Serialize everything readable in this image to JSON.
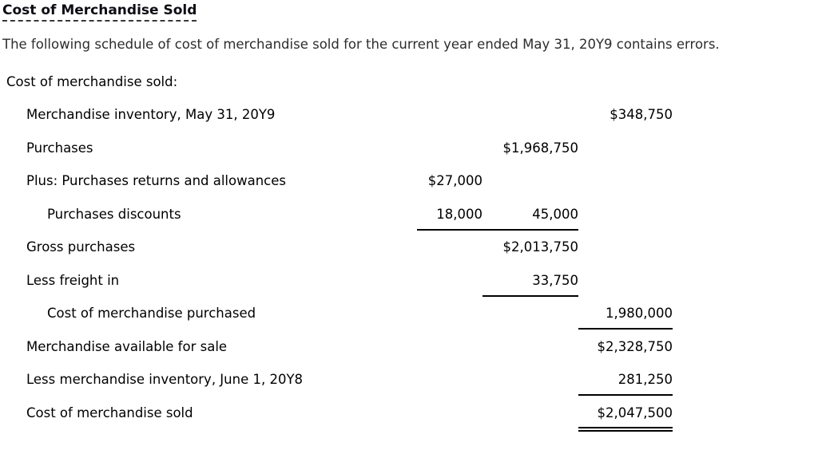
{
  "page": {
    "title": "Cost of Merchandise Sold",
    "intro": "The following schedule of cost of merchandise sold for the current year ended May 31, 20Y9 contains errors."
  },
  "schedule": {
    "header": "Cost of merchandise sold:",
    "rows": [
      {
        "label": "Merchandise inventory, May 31, 20Y9",
        "indent": 1,
        "c1": "",
        "c2": "",
        "c3": "$348,750",
        "r1": "none",
        "r2": "none",
        "r3": "none"
      },
      {
        "label": "Purchases",
        "indent": 1,
        "c1": "",
        "c2": "$1,968,750",
        "c3": "",
        "r1": "none",
        "r2": "none",
        "r3": "none"
      },
      {
        "label": "Plus: Purchases returns and allowances",
        "indent": 1,
        "c1": "$27,000",
        "c2": "",
        "c3": "",
        "r1": "none",
        "r2": "none",
        "r3": "none"
      },
      {
        "label": "Purchases discounts",
        "indent": 2,
        "c1": "18,000",
        "c2": "45,000",
        "c3": "",
        "r1": "single",
        "r2": "single",
        "r3": "none"
      },
      {
        "label": "Gross purchases",
        "indent": 1,
        "c1": "",
        "c2": "$2,013,750",
        "c3": "",
        "r1": "none",
        "r2": "none",
        "r3": "none"
      },
      {
        "label": "Less freight in",
        "indent": 1,
        "c1": "",
        "c2": "33,750",
        "c3": "",
        "r1": "none",
        "r2": "single",
        "r3": "none"
      },
      {
        "label": "Cost of merchandise purchased",
        "indent": 2,
        "c1": "",
        "c2": "",
        "c3": "1,980,000",
        "r1": "none",
        "r2": "none",
        "r3": "single"
      },
      {
        "label": "Merchandise available for sale",
        "indent": 1,
        "c1": "",
        "c2": "",
        "c3": "$2,328,750",
        "r1": "none",
        "r2": "none",
        "r3": "none"
      },
      {
        "label": "Less merchandise inventory, June 1, 20Y8",
        "indent": 1,
        "c1": "",
        "c2": "",
        "c3": "281,250",
        "r1": "none",
        "r2": "none",
        "r3": "single"
      },
      {
        "label": "Cost of merchandise sold",
        "indent": 1,
        "c1": "",
        "c2": "",
        "c3": "$2,047,500",
        "r1": "none",
        "r2": "none",
        "r3": "double"
      }
    ]
  },
  "colors": {
    "background": "#ffffff",
    "text": "#000000",
    "intro_text": "#2d2d2d",
    "rule": "#000000"
  }
}
